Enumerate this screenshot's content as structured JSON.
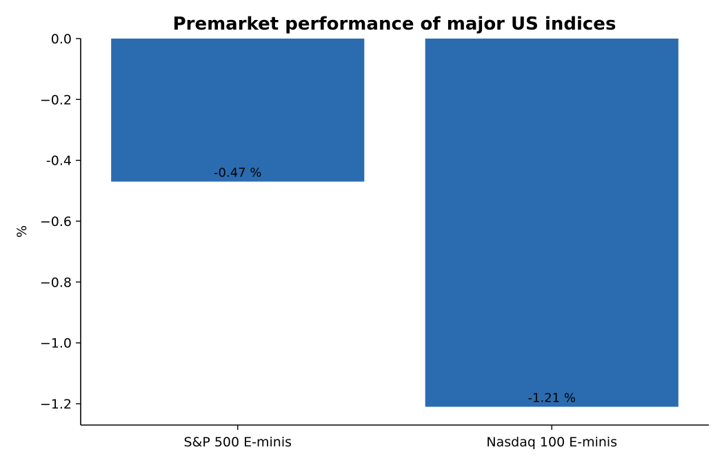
{
  "chart_data": {
    "type": "bar",
    "title": "Premarket performance of major US indices",
    "xlabel": "",
    "ylabel": "%",
    "categories": [
      "S&P 500 E-minis",
      "Nasdaq 100 E-minis"
    ],
    "values": [
      -0.47,
      -1.21
    ],
    "data_labels": [
      "-0.47 %",
      "-1.21 %"
    ],
    "ylim": [
      -1.27,
      0.0
    ],
    "yticks": [
      0.0,
      -0.2,
      -0.4,
      -0.6,
      -0.8,
      -1.0,
      -1.2
    ],
    "ytick_labels": [
      "0.0",
      "−0.2",
      "-0.4",
      "−0.6",
      "−0.8",
      "−1.0",
      "−1.2"
    ],
    "bar_color": "#2b6cb0",
    "grid": false,
    "legend": "none"
  }
}
